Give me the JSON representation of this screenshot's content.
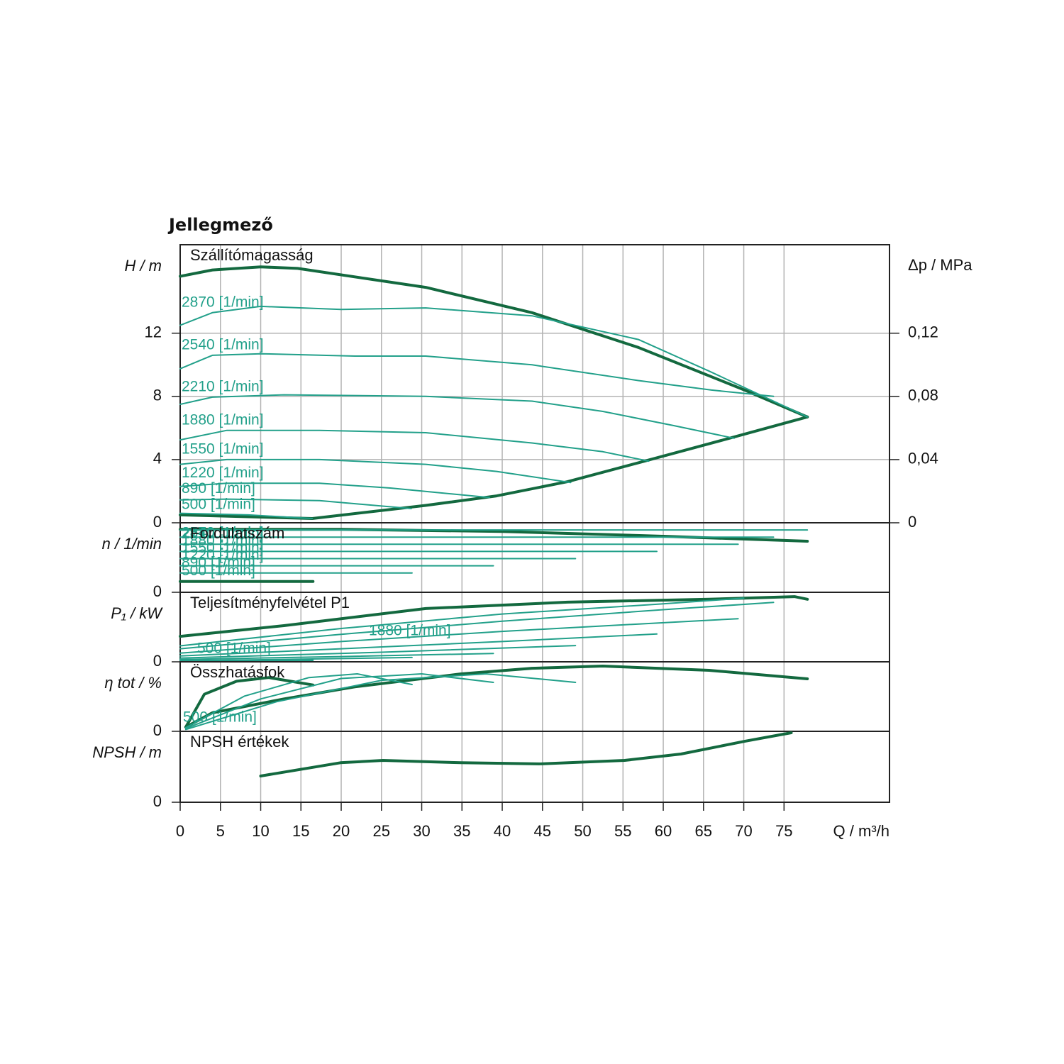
{
  "title": "Jellegmező",
  "chart_data": [
    {
      "type": "line",
      "title": "Szállítómagasság",
      "ylabel": "H / m",
      "xlim": [
        0,
        88.1
      ],
      "ylim": [
        0,
        17.6
      ],
      "yticks": [
        0,
        4,
        8,
        12
      ],
      "y2label": "Δp / MPa",
      "y2lim": [
        0,
        0.176
      ],
      "y2ticks": [
        0,
        {
          "value": 0.04,
          "label": "0,04"
        },
        {
          "value": 0.08,
          "label": "0,08"
        },
        {
          "value": 0.12,
          "label": "0,12"
        }
      ],
      "grid": true,
      "series": [
        {
          "color": "#13693f",
          "linewidth": 4,
          "x": [
            0,
            4,
            10,
            14.6,
            30.5,
            43.7,
            56.9,
            70.1,
            77.9
          ],
          "values": [
            15.6,
            16.0,
            16.2,
            16.1,
            14.9,
            13.3,
            11.1,
            8.4,
            6.7
          ]
        },
        {
          "color": "#13693f",
          "linewidth": 4,
          "x": [
            0,
            16.4,
            30.5,
            39.3,
            48.1,
            56.9,
            65.7,
            77.9
          ],
          "values": [
            0.5,
            0.27,
            1.1,
            1.7,
            2.6,
            3.8,
            5.0,
            6.7
          ]
        },
        {
          "name": "2870 [1/min]",
          "color": "#22a08a",
          "linewidth": 2,
          "x": [
            0,
            4,
            10,
            20,
            30.5,
            43.7,
            56.9,
            65.7,
            77.9
          ],
          "values": [
            12.5,
            13.3,
            13.7,
            13.5,
            13.6,
            13.1,
            11.6,
            9.6,
            6.7
          ]
        },
        {
          "name": "2540 [1/min]",
          "color": "#22a08a",
          "linewidth": 2,
          "x": [
            0,
            4,
            10,
            21.7,
            30.5,
            43.7,
            56.9,
            66,
            73.7
          ],
          "values": [
            9.75,
            10.6,
            10.7,
            10.55,
            10.55,
            10.0,
            9.0,
            8.4,
            8.0
          ]
        },
        {
          "name": "2210 [1/min]",
          "color": "#22a08a",
          "linewidth": 2,
          "x": [
            0,
            4,
            12.9,
            30.5,
            43.7,
            52.5,
            61.3,
            68.8
          ],
          "values": [
            7.5,
            7.95,
            8.1,
            8.0,
            7.7,
            7.05,
            6.15,
            5.35
          ]
        },
        {
          "name": "1880 [1/min]",
          "color": "#22a08a",
          "linewidth": 2,
          "x": [
            0,
            5.8,
            17.3,
            30.5,
            43.7,
            52.5,
            58.2
          ],
          "values": [
            5.25,
            5.85,
            5.85,
            5.7,
            5.05,
            4.5,
            3.9
          ]
        },
        {
          "name": "1550 [1/min]",
          "color": "#22a08a",
          "linewidth": 2,
          "x": [
            0,
            5.8,
            17.3,
            30.5,
            39.3,
            48.5
          ],
          "values": [
            3.7,
            4.0,
            4.0,
            3.7,
            3.25,
            2.55
          ]
        },
        {
          "name": "1220 [1/min]",
          "color": "#22a08a",
          "linewidth": 2,
          "x": [
            0,
            5.8,
            17.3,
            26.1,
            38.4
          ],
          "values": [
            2.3,
            2.5,
            2.5,
            2.2,
            1.6
          ]
        },
        {
          "name": "890 [1/min]",
          "color": "#22a08a",
          "linewidth": 2,
          "x": [
            0,
            5.8,
            17.3,
            28.7
          ],
          "values": [
            1.45,
            1.5,
            1.4,
            0.9
          ]
        },
        {
          "name": "500 [1/min]",
          "color": "#22a08a",
          "linewidth": 2,
          "x": [
            0,
            8.5,
            16.4
          ],
          "values": [
            0.6,
            0.5,
            0.27
          ]
        }
      ]
    },
    {
      "type": "line",
      "title": "Fordulatszám",
      "ylabel": "n / 1/min",
      "xlim": [
        0,
        88.1
      ],
      "ylim": [
        0,
        3200
      ],
      "yticks": [
        0
      ],
      "grid": true,
      "series": [
        {
          "color": "#13693f",
          "linewidth": 4,
          "x": [
            0,
            20,
            40,
            60,
            77.9
          ],
          "values": [
            2900,
            2900,
            2800,
            2580,
            2350
          ]
        },
        {
          "name": "2870 [1/min]",
          "color": "#22a08a",
          "linewidth": 2,
          "x": [
            0,
            77.9
          ],
          "values": [
            2870,
            2870
          ]
        },
        {
          "name": "2540 [1/min]",
          "color": "#22a08a",
          "linewidth": 2,
          "x": [
            0,
            73.7
          ],
          "values": [
            2540,
            2540
          ]
        },
        {
          "name": "2210 [1/min]",
          "color": "#22a08a",
          "linewidth": 2,
          "x": [
            0,
            69.3
          ],
          "values": [
            2210,
            2210
          ]
        },
        {
          "name": "1880 [1/min]",
          "color": "#22a08a",
          "linewidth": 2,
          "x": [
            0,
            59.2
          ],
          "values": [
            1880,
            1880
          ]
        },
        {
          "name": "1550 [1/min]",
          "color": "#22a08a",
          "linewidth": 2,
          "x": [
            0,
            49.1
          ],
          "values": [
            1550,
            1550
          ]
        },
        {
          "name": "1220 [1/min]",
          "color": "#22a08a",
          "linewidth": 2,
          "x": [
            0,
            38.9
          ],
          "values": [
            1220,
            1220
          ]
        },
        {
          "name": "890 [1/min]",
          "color": "#22a08a",
          "linewidth": 2,
          "x": [
            0,
            28.8
          ],
          "values": [
            890,
            890
          ]
        },
        {
          "name": "500 [1/min]",
          "color": "#13693f",
          "linewidth": 4,
          "x": [
            0,
            16.5
          ],
          "values": [
            500,
            500
          ]
        }
      ]
    },
    {
      "type": "line",
      "title": "Teljesítményfelvétel P1",
      "ylabel": "P₁ / kW",
      "xlim": [
        0,
        88.1
      ],
      "ylim": [
        0,
        2.4
      ],
      "yticks": [
        0
      ],
      "grid": true,
      "series": [
        {
          "color": "#13693f",
          "linewidth": 4,
          "x": [
            0,
            12.9,
            30.5,
            48.1,
            65.7,
            76.3,
            77.9
          ],
          "values": [
            0.88,
            1.25,
            1.84,
            2.06,
            2.16,
            2.25,
            2.16
          ]
        },
        {
          "color": "#22a08a",
          "linewidth": 2,
          "x": [
            0,
            20,
            40,
            60,
            70
          ],
          "values": [
            0.55,
            1.15,
            1.65,
            2.0,
            2.2
          ]
        },
        {
          "color": "#22a08a",
          "linewidth": 2,
          "x": [
            0,
            20,
            40,
            60,
            73.7
          ],
          "values": [
            0.45,
            0.95,
            1.4,
            1.8,
            2.05
          ]
        },
        {
          "name": "1880 [1/min]",
          "color": "#22a08a",
          "linewidth": 2,
          "x": [
            0,
            20,
            40,
            69.3
          ],
          "values": [
            0.3,
            0.7,
            1.05,
            1.49
          ]
        },
        {
          "color": "#22a08a",
          "linewidth": 2,
          "x": [
            0,
            20,
            40,
            59.2
          ],
          "values": [
            0.2,
            0.45,
            0.7,
            0.96
          ]
        },
        {
          "color": "#22a08a",
          "linewidth": 2,
          "x": [
            0,
            25,
            49.1
          ],
          "values": [
            0.13,
            0.33,
            0.56
          ]
        },
        {
          "color": "#22a08a",
          "linewidth": 2,
          "x": [
            0,
            20,
            38.9
          ],
          "values": [
            0.08,
            0.18,
            0.29
          ]
        },
        {
          "color": "#22a08a",
          "linewidth": 2,
          "x": [
            0,
            15,
            28.8
          ],
          "values": [
            0.04,
            0.09,
            0.15
          ]
        },
        {
          "name": "500 [1/min]",
          "color": "#22a08a",
          "linewidth": 2,
          "x": [
            0,
            16.5
          ],
          "values": [
            0.02,
            0.05
          ]
        }
      ]
    },
    {
      "type": "line",
      "title": "Összhatásfok",
      "ylabel": "η tot / %",
      "xlim": [
        0,
        88.1
      ],
      "ylim": [
        0,
        75
      ],
      "yticks": [
        0
      ],
      "grid": true,
      "series": [
        {
          "color": "#13693f",
          "linewidth": 4,
          "x": [
            0.7,
            4,
            12.9,
            21.7,
            34.9,
            43.7,
            52.5,
            65.7,
            77.9
          ],
          "values": [
            4.6,
            20,
            35,
            48,
            62,
            68,
            70.4,
            65.8,
            56.6
          ]
        },
        {
          "name": "500 [1/min]",
          "color": "#13693f",
          "linewidth": 4,
          "x": [
            0.7,
            3,
            7,
            11,
            16.5
          ],
          "values": [
            4.6,
            40,
            54,
            58,
            50
          ]
        },
        {
          "color": "#22a08a",
          "linewidth": 2,
          "x": [
            0.7,
            8,
            16,
            22,
            28.8
          ],
          "values": [
            4,
            38,
            58,
            62,
            50.5
          ]
        },
        {
          "color": "#22a08a",
          "linewidth": 2,
          "x": [
            0.7,
            10,
            20,
            30,
            38.9
          ],
          "values": [
            3,
            35,
            57,
            62,
            52.8
          ]
        },
        {
          "color": "#22a08a",
          "linewidth": 2,
          "x": [
            0.7,
            12,
            25,
            38,
            49.1
          ],
          "values": [
            2,
            32,
            55,
            62,
            52.8
          ]
        }
      ]
    },
    {
      "type": "line",
      "title": "NPSH értékek",
      "ylabel": "NPSH / m",
      "xlim": [
        0,
        88.1
      ],
      "ylim": [
        0,
        6.1
      ],
      "yticks": [
        0
      ],
      "grid": true,
      "xlabel": "Q / m³/h",
      "xticks": [
        0,
        5,
        10,
        15,
        20,
        25,
        30,
        35,
        40,
        45,
        50,
        55,
        60,
        65,
        70,
        75
      ],
      "series": [
        {
          "color": "#13693f",
          "linewidth": 4,
          "x": [
            10,
            19.9,
            25.2,
            34.9,
            44.6,
            55.2,
            62.2,
            70.1,
            75.9
          ],
          "values": [
            2.26,
            3.4,
            3.6,
            3.4,
            3.3,
            3.6,
            4.15,
            5.24,
            5.98
          ]
        }
      ]
    }
  ]
}
